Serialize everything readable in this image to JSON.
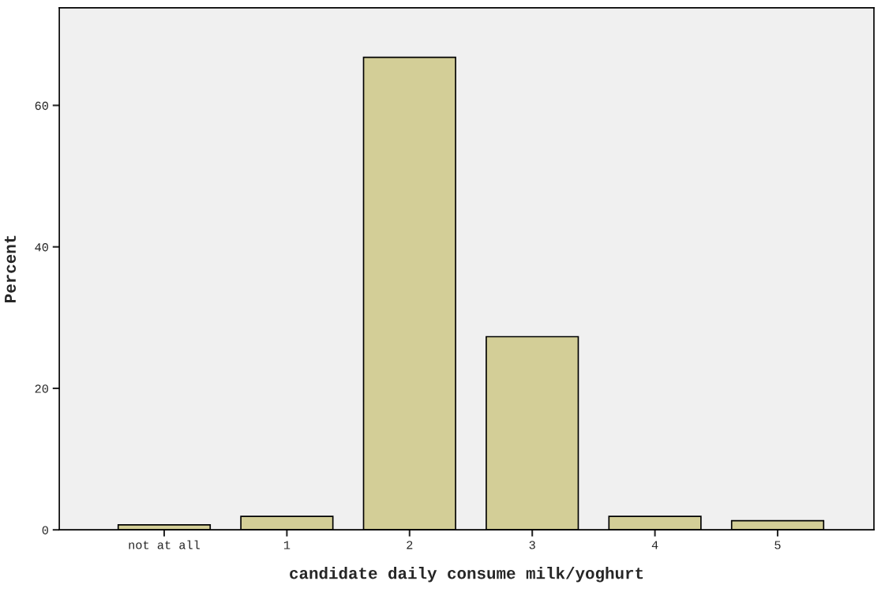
{
  "chart_data": {
    "type": "bar",
    "xlabel": "candidate daily consume milk/yoghurt",
    "ylabel": "Percent",
    "categories": [
      "not at all",
      "1",
      "2",
      "3",
      "4",
      "5"
    ],
    "values": [
      0.7,
      1.9,
      66.8,
      27.3,
      1.9,
      1.3
    ],
    "color": "#d3ce97",
    "ylim": [
      0,
      73.8
    ],
    "yticks": [
      0,
      20,
      40,
      60
    ],
    "grid": false
  }
}
